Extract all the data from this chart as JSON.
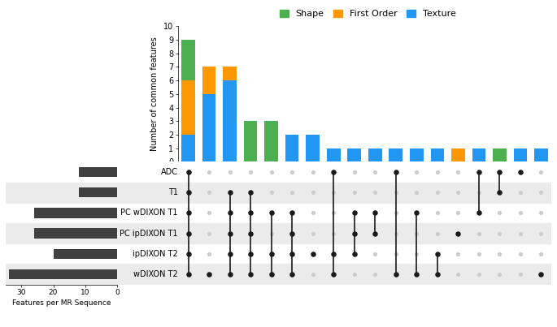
{
  "sequences": [
    "ADC",
    "T1",
    "PC wDIXON T1",
    "PC ipDIXON T1",
    "ipDIXON T2",
    "wDIXON T2"
  ],
  "seq_features": [
    12,
    12,
    26,
    26,
    20,
    34
  ],
  "bar_data": [
    {
      "shape": 3,
      "first_order": 4,
      "texture": 2
    },
    {
      "shape": 0,
      "first_order": 2,
      "texture": 5
    },
    {
      "shape": 0,
      "first_order": 1,
      "texture": 6
    },
    {
      "shape": 3,
      "first_order": 0,
      "texture": 0
    },
    {
      "shape": 3,
      "first_order": 0,
      "texture": 0
    },
    {
      "shape": 0,
      "first_order": 0,
      "texture": 2
    },
    {
      "shape": 0,
      "first_order": 0,
      "texture": 2
    },
    {
      "shape": 0,
      "first_order": 0,
      "texture": 1
    },
    {
      "shape": 0,
      "first_order": 0,
      "texture": 1
    },
    {
      "shape": 0,
      "first_order": 0,
      "texture": 1
    },
    {
      "shape": 0,
      "first_order": 0,
      "texture": 1
    },
    {
      "shape": 0,
      "first_order": 0,
      "texture": 1
    },
    {
      "shape": 0,
      "first_order": 0,
      "texture": 1
    },
    {
      "shape": 0,
      "first_order": 1,
      "texture": 0
    },
    {
      "shape": 0,
      "first_order": 0,
      "texture": 1
    },
    {
      "shape": 1,
      "first_order": 0,
      "texture": 0
    },
    {
      "shape": 0,
      "first_order": 0,
      "texture": 1
    },
    {
      "shape": 0,
      "first_order": 0,
      "texture": 1
    }
  ],
  "dot_matrix": [
    [
      1,
      1,
      1,
      1,
      1,
      1
    ],
    [
      0,
      0,
      0,
      0,
      0,
      1
    ],
    [
      0,
      1,
      1,
      1,
      1,
      1
    ],
    [
      0,
      1,
      1,
      1,
      1,
      1
    ],
    [
      0,
      0,
      1,
      0,
      1,
      1
    ],
    [
      0,
      0,
      1,
      1,
      1,
      1
    ],
    [
      0,
      0,
      0,
      0,
      1,
      0
    ],
    [
      1,
      0,
      0,
      0,
      1,
      1
    ],
    [
      0,
      0,
      1,
      1,
      1,
      0
    ],
    [
      0,
      0,
      1,
      1,
      0,
      0
    ],
    [
      1,
      0,
      0,
      0,
      0,
      1
    ],
    [
      0,
      0,
      1,
      0,
      0,
      1
    ],
    [
      0,
      0,
      0,
      0,
      1,
      1
    ],
    [
      0,
      0,
      0,
      1,
      0,
      0
    ],
    [
      1,
      0,
      1,
      0,
      0,
      0
    ],
    [
      1,
      1,
      0,
      0,
      0,
      0
    ],
    [
      1,
      0,
      0,
      0,
      0,
      0
    ],
    [
      0,
      0,
      0,
      0,
      0,
      1
    ]
  ],
  "colors": {
    "shape": "#4CAF50",
    "first_order": "#FF9800",
    "texture": "#2196F3",
    "dot_active": "#1a1a1a",
    "dot_inactive": "#cccccc",
    "bar_seq": "#404040",
    "row_shade": "#ebebeb"
  },
  "ylim_bar": [
    0,
    10
  ],
  "yticks_bar": [
    0,
    1,
    2,
    3,
    4,
    5,
    6,
    7,
    8,
    9,
    10
  ],
  "seq_bar_max": 35
}
